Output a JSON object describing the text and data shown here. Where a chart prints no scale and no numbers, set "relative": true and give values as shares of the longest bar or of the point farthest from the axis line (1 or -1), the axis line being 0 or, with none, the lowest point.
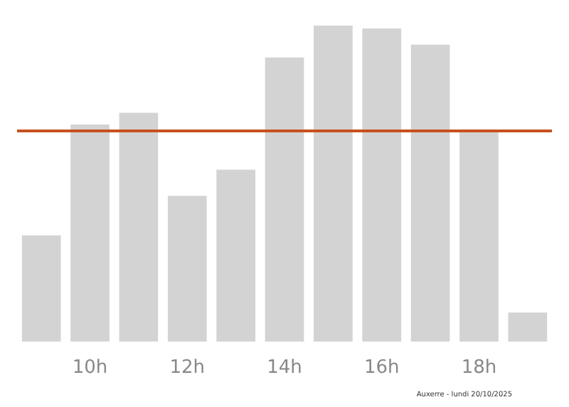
{
  "chart_data": {
    "type": "bar",
    "relative": true,
    "categories": [
      null,
      "10h",
      null,
      "12h",
      null,
      "14h",
      null,
      "16h",
      null,
      "18h",
      null
    ],
    "values": [
      0.336,
      0.687,
      0.724,
      0.461,
      0.544,
      0.899,
      1,
      0.991,
      0.94,
      0.668,
      0.092
    ],
    "color": "#d3d3d3",
    "ref_lines": [
      {
        "axis": "y",
        "value": 0.668,
        "color": "#c8501e",
        "line_style": "solid"
      }
    ],
    "annotations": [
      "Auxerre - lundi 20/10/2025"
    ]
  }
}
